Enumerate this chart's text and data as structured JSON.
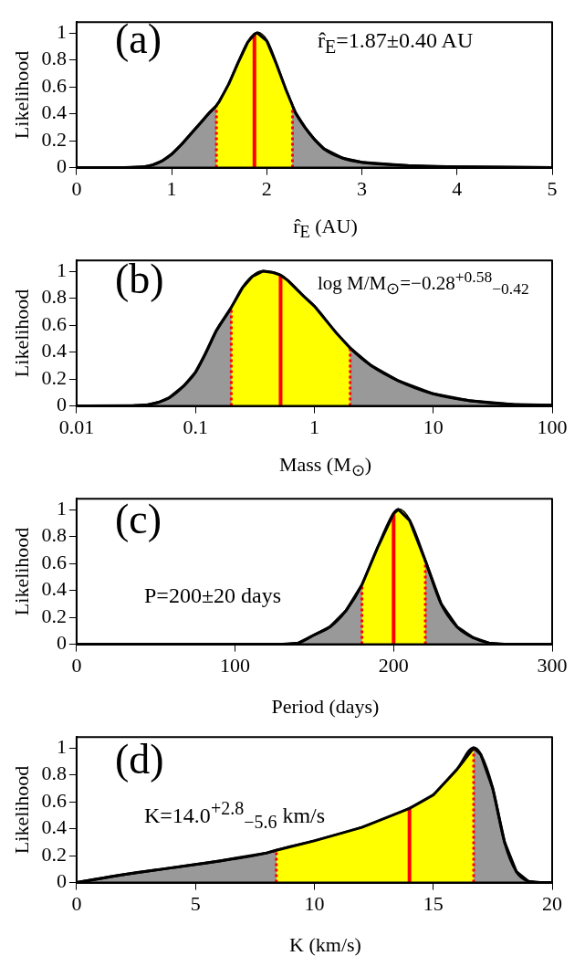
{
  "chart_data": [
    {
      "type": "area",
      "xlabel": "r̂$_{E}$ (AU)",
      "ylabel": "Likelihood",
      "annotations": [
        "(a)",
        "r̂$_{E}$=1.87±0.40 AU"
      ],
      "xlim": [
        0,
        5
      ],
      "xticks": [
        0,
        1,
        2,
        3,
        4,
        5
      ],
      "ylim": [
        0,
        1.08
      ],
      "yticks": [
        0,
        0.2,
        0.4,
        0.6,
        0.8,
        1
      ],
      "grid": false,
      "legend": false,
      "series": [
        {
          "color": "#999999",
          "x": [
            0,
            0.5,
            0.7,
            0.8,
            0.9,
            1.0,
            1.1,
            1.2,
            1.3,
            1.4,
            1.47,
            1.5,
            1.6,
            1.7,
            1.8,
            1.87,
            1.9,
            2.0,
            2.1,
            2.2,
            2.27,
            2.3,
            2.4,
            2.5,
            2.6,
            2.8,
            3.0,
            3.5,
            4,
            5
          ],
          "values": [
            0,
            0,
            0.005,
            0.02,
            0.05,
            0.1,
            0.17,
            0.25,
            0.33,
            0.41,
            0.46,
            0.49,
            0.62,
            0.78,
            0.93,
            0.99,
            1.0,
            0.94,
            0.77,
            0.58,
            0.46,
            0.41,
            0.3,
            0.21,
            0.14,
            0.07,
            0.04,
            0.015,
            0.006,
            0
          ]
        },
        {
          "color": "#ffff00",
          "x": [
            1.47,
            1.5,
            1.6,
            1.7,
            1.8,
            1.87,
            1.9,
            2.0,
            2.1,
            2.2,
            2.27
          ],
          "values": [
            0.46,
            0.49,
            0.62,
            0.78,
            0.93,
            0.99,
            1.0,
            0.94,
            0.77,
            0.58,
            0.46
          ]
        }
      ],
      "ref_lines": [
        {
          "axis": "x",
          "value": 1.47,
          "color": "#ff0000",
          "line_style": "dotted"
        },
        {
          "axis": "x",
          "value": 2.27,
          "color": "#ff0000",
          "line_style": "dotted"
        },
        {
          "axis": "x",
          "value": 1.87,
          "color": "#ff0000",
          "line_style": "solid"
        }
      ]
    },
    {
      "type": "area",
      "xlabel": "Mass (M$_{⊙}$)",
      "ylabel": "Likelihood",
      "annotations": [
        "(b)",
        "log M/M$_{⊙}$=−0.28$^{+0.58}$$_{−0.42}$"
      ],
      "log": "x",
      "xlim": [
        0.01,
        100
      ],
      "xticks": [
        0.01,
        0.1,
        1,
        10,
        100
      ],
      "ylim": [
        0,
        1.08
      ],
      "yticks": [
        0,
        0.2,
        0.4,
        0.6,
        0.8,
        1
      ],
      "grid": false,
      "legend": false,
      "series": [
        {
          "color": "#999999",
          "x": [
            0.01,
            0.03,
            0.04,
            0.05,
            0.06,
            0.08,
            0.1,
            0.12,
            0.15,
            0.2,
            0.25,
            0.3,
            0.37,
            0.45,
            0.52,
            0.6,
            0.8,
            1,
            1.5,
            2,
            3,
            5,
            10,
            20,
            50,
            100
          ],
          "values": [
            0,
            0.002,
            0.01,
            0.03,
            0.06,
            0.15,
            0.25,
            0.38,
            0.56,
            0.73,
            0.88,
            0.96,
            1.0,
            0.99,
            0.97,
            0.93,
            0.82,
            0.74,
            0.55,
            0.43,
            0.3,
            0.19,
            0.09,
            0.04,
            0.01,
            0.005
          ]
        },
        {
          "color": "#ffff00",
          "x": [
            0.2,
            0.25,
            0.3,
            0.37,
            0.45,
            0.52,
            0.6,
            0.8,
            1,
            1.5,
            2
          ],
          "values": [
            0.73,
            0.88,
            0.96,
            1.0,
            0.99,
            0.97,
            0.93,
            0.82,
            0.74,
            0.55,
            0.43
          ]
        }
      ],
      "ref_lines": [
        {
          "axis": "x",
          "value": 0.2,
          "color": "#ff0000",
          "line_style": "dotted"
        },
        {
          "axis": "x",
          "value": 2,
          "color": "#ff0000",
          "line_style": "dotted"
        },
        {
          "axis": "x",
          "value": 0.52,
          "color": "#ff0000",
          "line_style": "solid"
        }
      ]
    },
    {
      "type": "area",
      "xlabel": "Period (days)",
      "ylabel": "Likelihood",
      "annotations": [
        "(c)",
        "P=200±20 days"
      ],
      "xlim": [
        0,
        300
      ],
      "xticks": [
        0,
        100,
        200,
        300
      ],
      "ylim": [
        0,
        1.08
      ],
      "yticks": [
        0,
        0.2,
        0.4,
        0.6,
        0.8,
        1
      ],
      "grid": false,
      "legend": false,
      "series": [
        {
          "color": "#999999",
          "x": [
            0,
            130,
            140,
            150,
            160,
            170,
            180,
            190,
            200,
            203,
            210,
            220,
            230,
            240,
            250,
            260,
            270,
            300
          ],
          "values": [
            0,
            0,
            0.01,
            0.07,
            0.13,
            0.25,
            0.44,
            0.72,
            0.97,
            1.0,
            0.92,
            0.62,
            0.3,
            0.13,
            0.05,
            0.01,
            0,
            0
          ]
        },
        {
          "color": "#ffff00",
          "x": [
            180,
            190,
            200,
            203,
            210,
            220
          ],
          "values": [
            0.44,
            0.72,
            0.97,
            1.0,
            0.92,
            0.62
          ]
        }
      ],
      "ref_lines": [
        {
          "axis": "x",
          "value": 180,
          "color": "#ff0000",
          "line_style": "dotted"
        },
        {
          "axis": "x",
          "value": 220,
          "color": "#ff0000",
          "line_style": "dotted"
        },
        {
          "axis": "x",
          "value": 200,
          "color": "#ff0000",
          "line_style": "solid"
        }
      ]
    },
    {
      "type": "area",
      "xlabel": "K (km/s)",
      "ylabel": "Likelihood",
      "annotations": [
        "(d)",
        "K=14.0$^{+2.8}$$_{−5.6}$ km/s"
      ],
      "xlim": [
        0,
        20
      ],
      "xticks": [
        0,
        5,
        10,
        15,
        20
      ],
      "ylim": [
        0,
        1.08
      ],
      "yticks": [
        0,
        0.2,
        0.4,
        0.6,
        0.8,
        1
      ],
      "grid": false,
      "legend": false,
      "series": [
        {
          "color": "#999999",
          "x": [
            0,
            2,
            4,
            6,
            8,
            8.4,
            10,
            12,
            14,
            15,
            16,
            16.7,
            17,
            17.5,
            18,
            18.5,
            19,
            19.5,
            20
          ],
          "values": [
            0,
            0.06,
            0.11,
            0.16,
            0.22,
            0.24,
            0.31,
            0.41,
            0.55,
            0.65,
            0.84,
            1.0,
            0.95,
            0.7,
            0.3,
            0.08,
            0.01,
            0,
            0
          ]
        },
        {
          "color": "#ffff00",
          "x": [
            8.4,
            10,
            12,
            14,
            15,
            16,
            16.7
          ],
          "values": [
            0.24,
            0.31,
            0.41,
            0.55,
            0.65,
            0.84,
            1.0
          ]
        }
      ],
      "ref_lines": [
        {
          "axis": "x",
          "value": 8.4,
          "color": "#ff0000",
          "line_style": "dotted"
        },
        {
          "axis": "x",
          "value": 16.7,
          "color": "#ff0000",
          "line_style": "dotted"
        },
        {
          "axis": "x",
          "value": 14,
          "color": "#ff0000",
          "line_style": "solid"
        }
      ]
    }
  ]
}
